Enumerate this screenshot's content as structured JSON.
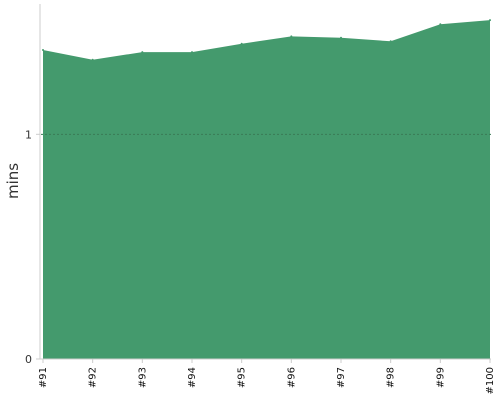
{
  "chart_data": {
    "type": "area",
    "title": "",
    "xlabel": "",
    "ylabel": "mins",
    "categories": [
      "#91",
      "#92",
      "#93",
      "#94",
      "#95",
      "#96",
      "#97",
      "#98",
      "#99",
      "#100"
    ],
    "series": [
      {
        "values": [
          1.375,
          1.332,
          1.366,
          1.366,
          1.403,
          1.436,
          1.43,
          1.414,
          1.49,
          1.508
        ]
      }
    ],
    "ylim": [
      0,
      1.58
    ],
    "yticks": [
      0,
      1
    ],
    "ytick_labels": [
      "0",
      "1"
    ],
    "gridline_at": 1,
    "grid": false,
    "legend": "none",
    "colors": {
      "area": "#449a6d",
      "gridline": "#3a7a56",
      "axis": "#cccccc"
    }
  }
}
